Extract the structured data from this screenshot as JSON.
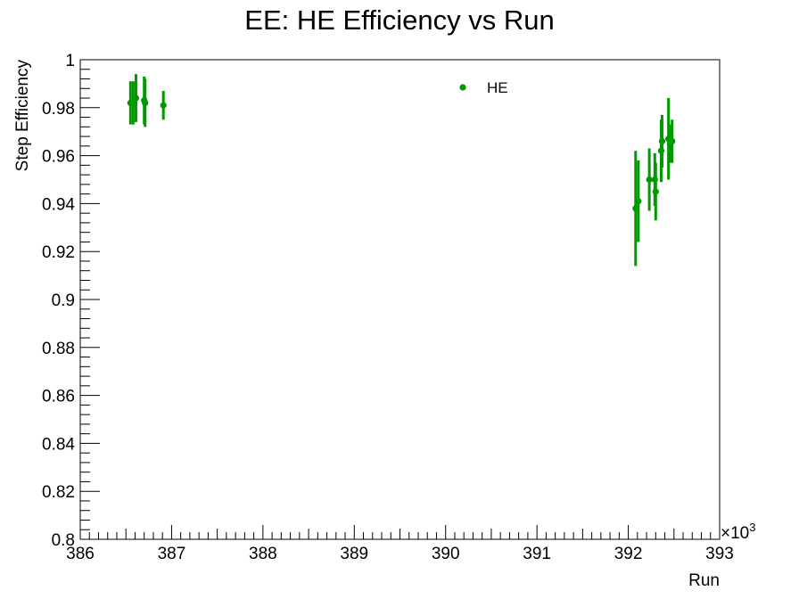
{
  "chart_data": {
    "type": "scatter",
    "title": "EE: HE Efficiency vs Run",
    "xlabel": "Run",
    "ylabel": "Step Efficiency",
    "x_multiplier_label": "×10",
    "x_multiplier_exp": "3",
    "xlim": [
      386000,
      393000
    ],
    "ylim": [
      0.8,
      1.0
    ],
    "x_ticks": [
      386000,
      387000,
      388000,
      389000,
      390000,
      391000,
      392000,
      393000
    ],
    "x_tick_labels": [
      "386",
      "387",
      "388",
      "389",
      "390",
      "391",
      "392",
      "393"
    ],
    "y_ticks": [
      0.8,
      0.82,
      0.84,
      0.86,
      0.88,
      0.9,
      0.92,
      0.94,
      0.96,
      0.98,
      1.0
    ],
    "y_tick_labels": [
      "0.8",
      "0.82",
      "0.84",
      "0.86",
      "0.88",
      "0.9",
      "0.92",
      "0.94",
      "0.96",
      "0.98",
      "1"
    ],
    "grid": false,
    "legend_position": "top-right",
    "series": [
      {
        "name": "HE",
        "color": "#009900",
        "points": [
          {
            "x": 386550,
            "y": 0.982,
            "err": 0.009
          },
          {
            "x": 386580,
            "y": 0.982,
            "err": 0.009
          },
          {
            "x": 386610,
            "y": 0.984,
            "err": 0.01
          },
          {
            "x": 386700,
            "y": 0.983,
            "err": 0.01
          },
          {
            "x": 386710,
            "y": 0.982,
            "err": 0.01
          },
          {
            "x": 386910,
            "y": 0.981,
            "err": 0.006
          },
          {
            "x": 392080,
            "y": 0.938,
            "err": 0.024
          },
          {
            "x": 392110,
            "y": 0.941,
            "err": 0.017
          },
          {
            "x": 392230,
            "y": 0.95,
            "err": 0.013
          },
          {
            "x": 392290,
            "y": 0.95,
            "err": 0.011
          },
          {
            "x": 392300,
            "y": 0.945,
            "err": 0.012
          },
          {
            "x": 392360,
            "y": 0.962,
            "err": 0.013
          },
          {
            "x": 392370,
            "y": 0.966,
            "err": 0.011
          },
          {
            "x": 392440,
            "y": 0.967,
            "err": 0.017
          },
          {
            "x": 392460,
            "y": 0.965,
            "err": 0.008
          },
          {
            "x": 392480,
            "y": 0.966,
            "err": 0.009
          }
        ]
      }
    ]
  }
}
